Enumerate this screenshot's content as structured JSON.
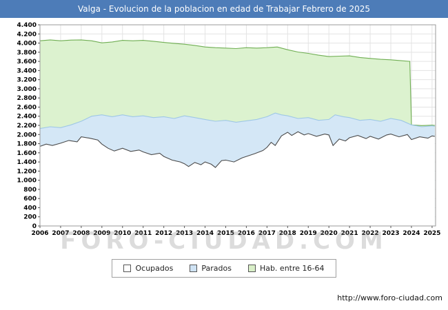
{
  "title": "Valga - Evolucion de la poblacion en edad de Trabajar Febrero de 2025",
  "footer_url": "http://www.foro-ciudad.com",
  "watermark": "FORO-CIUDAD.COM",
  "colors": {
    "title_bar_bg": "#4d7cb8",
    "grid": "#e3e3e3",
    "plot_border": "#9a9a9a",
    "tick_text": "#000000"
  },
  "legend": [
    {
      "label": "Ocupados",
      "swatch": "#ffffff"
    },
    {
      "label": "Parados",
      "swatch": "#cfe3f4"
    },
    {
      "label": "Hab. entre 16-64",
      "swatch": "#d9efc8"
    }
  ],
  "chart_data": {
    "type": "area",
    "title": "Valga - Evolucion de la poblacion en edad de Trabajar Febrero de 2025",
    "xlabel": "",
    "ylabel": "",
    "x_range": [
      2006,
      2025.17
    ],
    "ylim": [
      0,
      4400
    ],
    "y_tick_step": 200,
    "y_tick_labels": [
      "0",
      "200",
      "400",
      "600",
      "800",
      "1.000",
      "1.200",
      "1.400",
      "1.600",
      "1.800",
      "2.000",
      "2.200",
      "2.400",
      "2.600",
      "2.800",
      "3.000",
      "3.200",
      "3.400",
      "3.600",
      "3.800",
      "4.000",
      "4.200",
      "4.400"
    ],
    "x_ticks": [
      2006,
      2007,
      2008,
      2009,
      2010,
      2011,
      2012,
      2013,
      2014,
      2015,
      2016,
      2017,
      2018,
      2019,
      2020,
      2021,
      2022,
      2023,
      2024,
      2025
    ],
    "grid": true,
    "legend_position": "bottom",
    "note": "Series are drawn as overlapping areas; values are the visible stacked tops read from the chart. Hab. entre 16-64 drops sharply at the start of 2024.",
    "series": [
      {
        "name": "Hab. entre 16-64",
        "fill": "#dcf2cf",
        "line": "#6fae52",
        "points": [
          [
            2006.0,
            4050
          ],
          [
            2006.5,
            4070
          ],
          [
            2007.0,
            4050
          ],
          [
            2007.5,
            4065
          ],
          [
            2008.0,
            4070
          ],
          [
            2008.5,
            4050
          ],
          [
            2009.0,
            4005
          ],
          [
            2009.5,
            4025
          ],
          [
            2010.0,
            4060
          ],
          [
            2010.5,
            4050
          ],
          [
            2011.0,
            4060
          ],
          [
            2011.5,
            4040
          ],
          [
            2012.0,
            4015
          ],
          [
            2012.5,
            3995
          ],
          [
            2013.0,
            3975
          ],
          [
            2013.5,
            3950
          ],
          [
            2014.0,
            3915
          ],
          [
            2014.5,
            3900
          ],
          [
            2015.0,
            3890
          ],
          [
            2015.5,
            3880
          ],
          [
            2016.0,
            3900
          ],
          [
            2016.5,
            3890
          ],
          [
            2017.0,
            3900
          ],
          [
            2017.5,
            3915
          ],
          [
            2018.0,
            3855
          ],
          [
            2018.5,
            3805
          ],
          [
            2019.0,
            3775
          ],
          [
            2019.5,
            3735
          ],
          [
            2020.0,
            3705
          ],
          [
            2020.5,
            3715
          ],
          [
            2021.0,
            3720
          ],
          [
            2021.5,
            3685
          ],
          [
            2022.0,
            3665
          ],
          [
            2022.5,
            3645
          ],
          [
            2023.0,
            3635
          ],
          [
            2023.5,
            3615
          ],
          [
            2023.92,
            3600
          ],
          [
            2024.0,
            2210
          ],
          [
            2024.5,
            2195
          ],
          [
            2025.0,
            2205
          ],
          [
            2025.13,
            2200
          ]
        ]
      },
      {
        "name": "Parados",
        "fill": "#d4e7f6",
        "line": "#9ec7e6",
        "points": [
          [
            2006.0,
            2130
          ],
          [
            2006.5,
            2170
          ],
          [
            2007.0,
            2150
          ],
          [
            2007.5,
            2210
          ],
          [
            2008.0,
            2290
          ],
          [
            2008.5,
            2400
          ],
          [
            2009.0,
            2430
          ],
          [
            2009.5,
            2390
          ],
          [
            2010.0,
            2430
          ],
          [
            2010.5,
            2390
          ],
          [
            2011.0,
            2410
          ],
          [
            2011.5,
            2370
          ],
          [
            2012.0,
            2390
          ],
          [
            2012.5,
            2350
          ],
          [
            2013.0,
            2410
          ],
          [
            2013.5,
            2370
          ],
          [
            2014.0,
            2330
          ],
          [
            2014.5,
            2290
          ],
          [
            2015.0,
            2310
          ],
          [
            2015.5,
            2270
          ],
          [
            2016.0,
            2300
          ],
          [
            2016.5,
            2330
          ],
          [
            2017.0,
            2390
          ],
          [
            2017.4,
            2470
          ],
          [
            2017.7,
            2430
          ],
          [
            2018.0,
            2410
          ],
          [
            2018.5,
            2350
          ],
          [
            2019.0,
            2370
          ],
          [
            2019.5,
            2310
          ],
          [
            2020.0,
            2330
          ],
          [
            2020.3,
            2430
          ],
          [
            2020.7,
            2390
          ],
          [
            2021.0,
            2370
          ],
          [
            2021.5,
            2310
          ],
          [
            2022.0,
            2330
          ],
          [
            2022.5,
            2290
          ],
          [
            2023.0,
            2350
          ],
          [
            2023.5,
            2310
          ],
          [
            2024.0,
            2210
          ],
          [
            2024.5,
            2170
          ],
          [
            2025.0,
            2190
          ],
          [
            2025.13,
            2180
          ]
        ]
      },
      {
        "name": "Ocupados",
        "fill": "#ffffff",
        "line": "#4a4a4a",
        "points": [
          [
            2006.0,
            1740
          ],
          [
            2006.3,
            1790
          ],
          [
            2006.6,
            1760
          ],
          [
            2007.0,
            1810
          ],
          [
            2007.4,
            1870
          ],
          [
            2007.8,
            1840
          ],
          [
            2008.0,
            1950
          ],
          [
            2008.4,
            1920
          ],
          [
            2008.8,
            1880
          ],
          [
            2009.0,
            1790
          ],
          [
            2009.3,
            1700
          ],
          [
            2009.6,
            1640
          ],
          [
            2010.0,
            1700
          ],
          [
            2010.4,
            1630
          ],
          [
            2010.8,
            1660
          ],
          [
            2011.0,
            1620
          ],
          [
            2011.4,
            1560
          ],
          [
            2011.8,
            1590
          ],
          [
            2012.0,
            1520
          ],
          [
            2012.4,
            1440
          ],
          [
            2012.8,
            1400
          ],
          [
            2013.0,
            1360
          ],
          [
            2013.2,
            1300
          ],
          [
            2013.5,
            1390
          ],
          [
            2013.8,
            1340
          ],
          [
            2014.0,
            1400
          ],
          [
            2014.3,
            1350
          ],
          [
            2014.5,
            1280
          ],
          [
            2014.8,
            1430
          ],
          [
            2015.0,
            1440
          ],
          [
            2015.4,
            1400
          ],
          [
            2015.8,
            1490
          ],
          [
            2016.0,
            1520
          ],
          [
            2016.4,
            1580
          ],
          [
            2016.8,
            1650
          ],
          [
            2017.0,
            1720
          ],
          [
            2017.2,
            1830
          ],
          [
            2017.4,
            1760
          ],
          [
            2017.7,
            1970
          ],
          [
            2018.0,
            2050
          ],
          [
            2018.2,
            1980
          ],
          [
            2018.5,
            2060
          ],
          [
            2018.8,
            1990
          ],
          [
            2019.0,
            2020
          ],
          [
            2019.4,
            1960
          ],
          [
            2019.8,
            2010
          ],
          [
            2020.0,
            1990
          ],
          [
            2020.2,
            1760
          ],
          [
            2020.5,
            1900
          ],
          [
            2020.8,
            1860
          ],
          [
            2021.0,
            1930
          ],
          [
            2021.4,
            1980
          ],
          [
            2021.8,
            1910
          ],
          [
            2022.0,
            1960
          ],
          [
            2022.4,
            1900
          ],
          [
            2022.8,
            1990
          ],
          [
            2023.0,
            2010
          ],
          [
            2023.4,
            1950
          ],
          [
            2023.8,
            2000
          ],
          [
            2024.0,
            1890
          ],
          [
            2024.4,
            1950
          ],
          [
            2024.8,
            1920
          ],
          [
            2025.0,
            1970
          ],
          [
            2025.13,
            1960
          ]
        ]
      }
    ]
  }
}
